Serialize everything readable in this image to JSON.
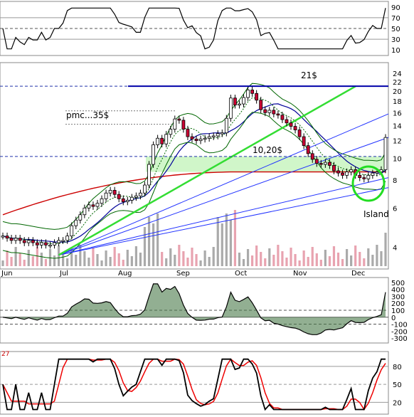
{
  "chart_data": {
    "type": "candlestick",
    "months": [
      "Jun",
      "Jul",
      "Aug",
      "Sep",
      "Oct",
      "Nov",
      "Dec"
    ],
    "price_axis": {
      "scale": "log",
      "ticks": [
        4,
        6,
        8,
        10,
        12,
        14,
        16,
        18,
        20,
        22,
        24
      ]
    },
    "rsi_axis": {
      "ticks": [
        10,
        30,
        50,
        70,
        90
      ]
    },
    "cci_axis": {
      "ticks": [
        -300,
        -200,
        -100,
        0,
        100,
        200,
        300,
        400,
        500
      ]
    },
    "stoch_axis": {
      "ticks": [
        20,
        50,
        80
      ]
    },
    "stoch_corner_label": "27",
    "annotations": {
      "resistance": "21$",
      "pmc": "pmc...35$",
      "support": "10,20$",
      "island": "Island"
    },
    "levels": {
      "resistance": 21,
      "pmc": 16.3,
      "support": 10.2
    },
    "support_zone": [
      8.7,
      10.2
    ],
    "colors": {
      "candle_up": "#ffffff",
      "candle_down": "#cc0033",
      "bollinger": "#006600",
      "sma_long": "#cc0000",
      "sma_mid": "#000099",
      "trendline_green": "#33dd33",
      "fan_lines": "#2233ff",
      "dashed_levels": "#2233aa",
      "support_zone": "#c8f5c0",
      "volume_up": "#aaaaaa",
      "volume_down": "#e8a3b0",
      "stoch_k": "#000000",
      "stoch_d": "#ee0000",
      "osc_fill": "#4a7a4a"
    },
    "series": [
      {
        "name": "price",
        "close": [
          4.5,
          4.4,
          4.3,
          4.4,
          4.3,
          4.2,
          4.3,
          4.2,
          4.1,
          4.2,
          4.1,
          4.1,
          4.2,
          4.3,
          4.3,
          4.5,
          5.0,
          5.3,
          5.6,
          6.0,
          6.2,
          6.1,
          6.3,
          6.6,
          7.0,
          7.2,
          6.9,
          6.6,
          6.4,
          6.5,
          6.7,
          6.8,
          7.0,
          7.6,
          9.4,
          11.5,
          12.3,
          11.6,
          12.8,
          13.5,
          15.0,
          14.8,
          13.5,
          12.5,
          12.2,
          12.0,
          12.2,
          12.3,
          12.5,
          12.6,
          12.9,
          13.0,
          15.1,
          18.6,
          17.3,
          17.5,
          18.7,
          20.2,
          19.5,
          18.2,
          16.5,
          16.0,
          16.4,
          15.8,
          15.6,
          14.9,
          14.4,
          13.9,
          13.4,
          12.5,
          11.4,
          10.5,
          9.9,
          9.5,
          9.4,
          9.6,
          9.3,
          8.8,
          8.6,
          8.4,
          8.7,
          8.9,
          8.4,
          8.2,
          8.1,
          8.4,
          8.6,
          8.7,
          8.9,
          12.4
        ]
      }
    ]
  }
}
